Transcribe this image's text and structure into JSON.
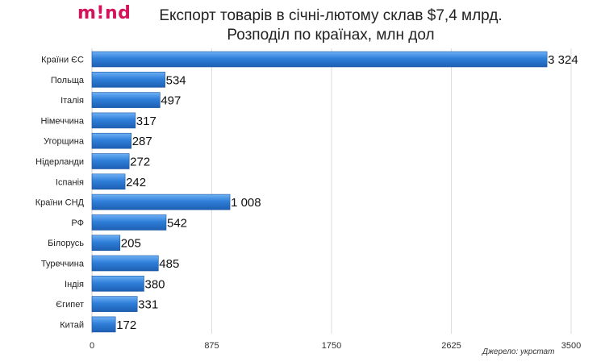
{
  "brand": {
    "logo_text": "m!nd",
    "color": "#d4145a"
  },
  "source_note": "Джерело: укрстат",
  "chart_data": {
    "type": "bar",
    "orientation": "horizontal",
    "title": "Експорт товарів в січні-лютому склав $7,4 млрд.",
    "subtitle": "Розподіл по країнах, млн дол",
    "categories": [
      "Країни ЄС",
      "Польща",
      "Італія",
      "Німеччина",
      "Угорщина",
      "Нідерланди",
      "Іспанія",
      "Країни СНД",
      "РФ",
      "Білорусь",
      "Туреччина",
      "Індія",
      "Єгипет",
      "Китай"
    ],
    "values": [
      3324,
      534,
      497,
      317,
      287,
      272,
      242,
      1008,
      542,
      205,
      485,
      380,
      331,
      172
    ],
    "value_labels": [
      "3 324",
      "534",
      "497",
      "317",
      "287",
      "272",
      "242",
      "1 008",
      "542",
      "205",
      "485",
      "380",
      "331",
      "172"
    ],
    "xlim": [
      0,
      3500
    ],
    "xticks": [
      0,
      875,
      1750,
      2625,
      3500
    ],
    "xtick_labels": [
      "0",
      "875",
      "1750",
      "2625",
      "3500"
    ],
    "grid": true,
    "bar_color": "#2f7fd9"
  }
}
